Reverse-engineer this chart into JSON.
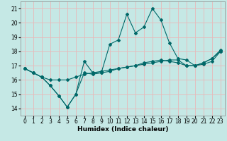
{
  "xlabel": "Humidex (Indice chaleur)",
  "background_color": "#c5e8e5",
  "grid_color": "#e8b8b8",
  "line_color": "#006868",
  "xlim": [
    -0.5,
    23.5
  ],
  "ylim": [
    13.5,
    21.5
  ],
  "yticks": [
    14,
    15,
    16,
    17,
    18,
    19,
    20,
    21
  ],
  "xticks": [
    0,
    1,
    2,
    3,
    4,
    5,
    6,
    7,
    8,
    9,
    10,
    11,
    12,
    13,
    14,
    15,
    16,
    17,
    18,
    19,
    20,
    21,
    22,
    23
  ],
  "lines": [
    {
      "x": [
        0,
        1,
        2,
        3,
        4,
        5,
        6,
        7,
        8,
        9,
        10,
        11,
        12,
        13,
        14,
        15,
        16,
        17,
        18,
        19,
        20,
        21,
        22,
        23
      ],
      "y": [
        16.8,
        16.5,
        16.2,
        16.0,
        16.0,
        16.0,
        16.2,
        16.4,
        16.5,
        16.6,
        16.7,
        16.8,
        16.9,
        17.0,
        17.1,
        17.2,
        17.3,
        17.4,
        17.4,
        17.0,
        17.0,
        17.2,
        17.5,
        18.0
      ]
    },
    {
      "x": [
        0,
        1,
        2,
        3,
        4,
        5,
        6,
        7,
        8,
        9,
        10,
        11,
        12,
        13,
        14,
        15,
        16,
        17,
        18,
        19,
        20,
        21,
        22,
        23
      ],
      "y": [
        16.8,
        16.5,
        16.2,
        15.6,
        14.9,
        14.1,
        15.0,
        16.5,
        16.4,
        16.5,
        16.6,
        16.8,
        16.9,
        17.0,
        17.2,
        17.3,
        17.4,
        17.3,
        17.2,
        17.0,
        17.0,
        17.1,
        17.3,
        18.0
      ]
    },
    {
      "x": [
        0,
        1,
        2,
        3,
        4,
        5,
        6,
        7,
        8,
        9,
        10,
        11,
        12,
        13,
        14,
        15,
        16,
        17,
        18,
        19,
        20,
        21,
        22,
        23
      ],
      "y": [
        16.8,
        16.5,
        16.2,
        15.6,
        14.9,
        14.1,
        15.0,
        17.3,
        16.5,
        16.5,
        18.5,
        18.8,
        20.6,
        19.3,
        19.7,
        21.0,
        20.2,
        18.6,
        17.5,
        17.4,
        17.0,
        17.2,
        17.5,
        18.1
      ]
    }
  ]
}
